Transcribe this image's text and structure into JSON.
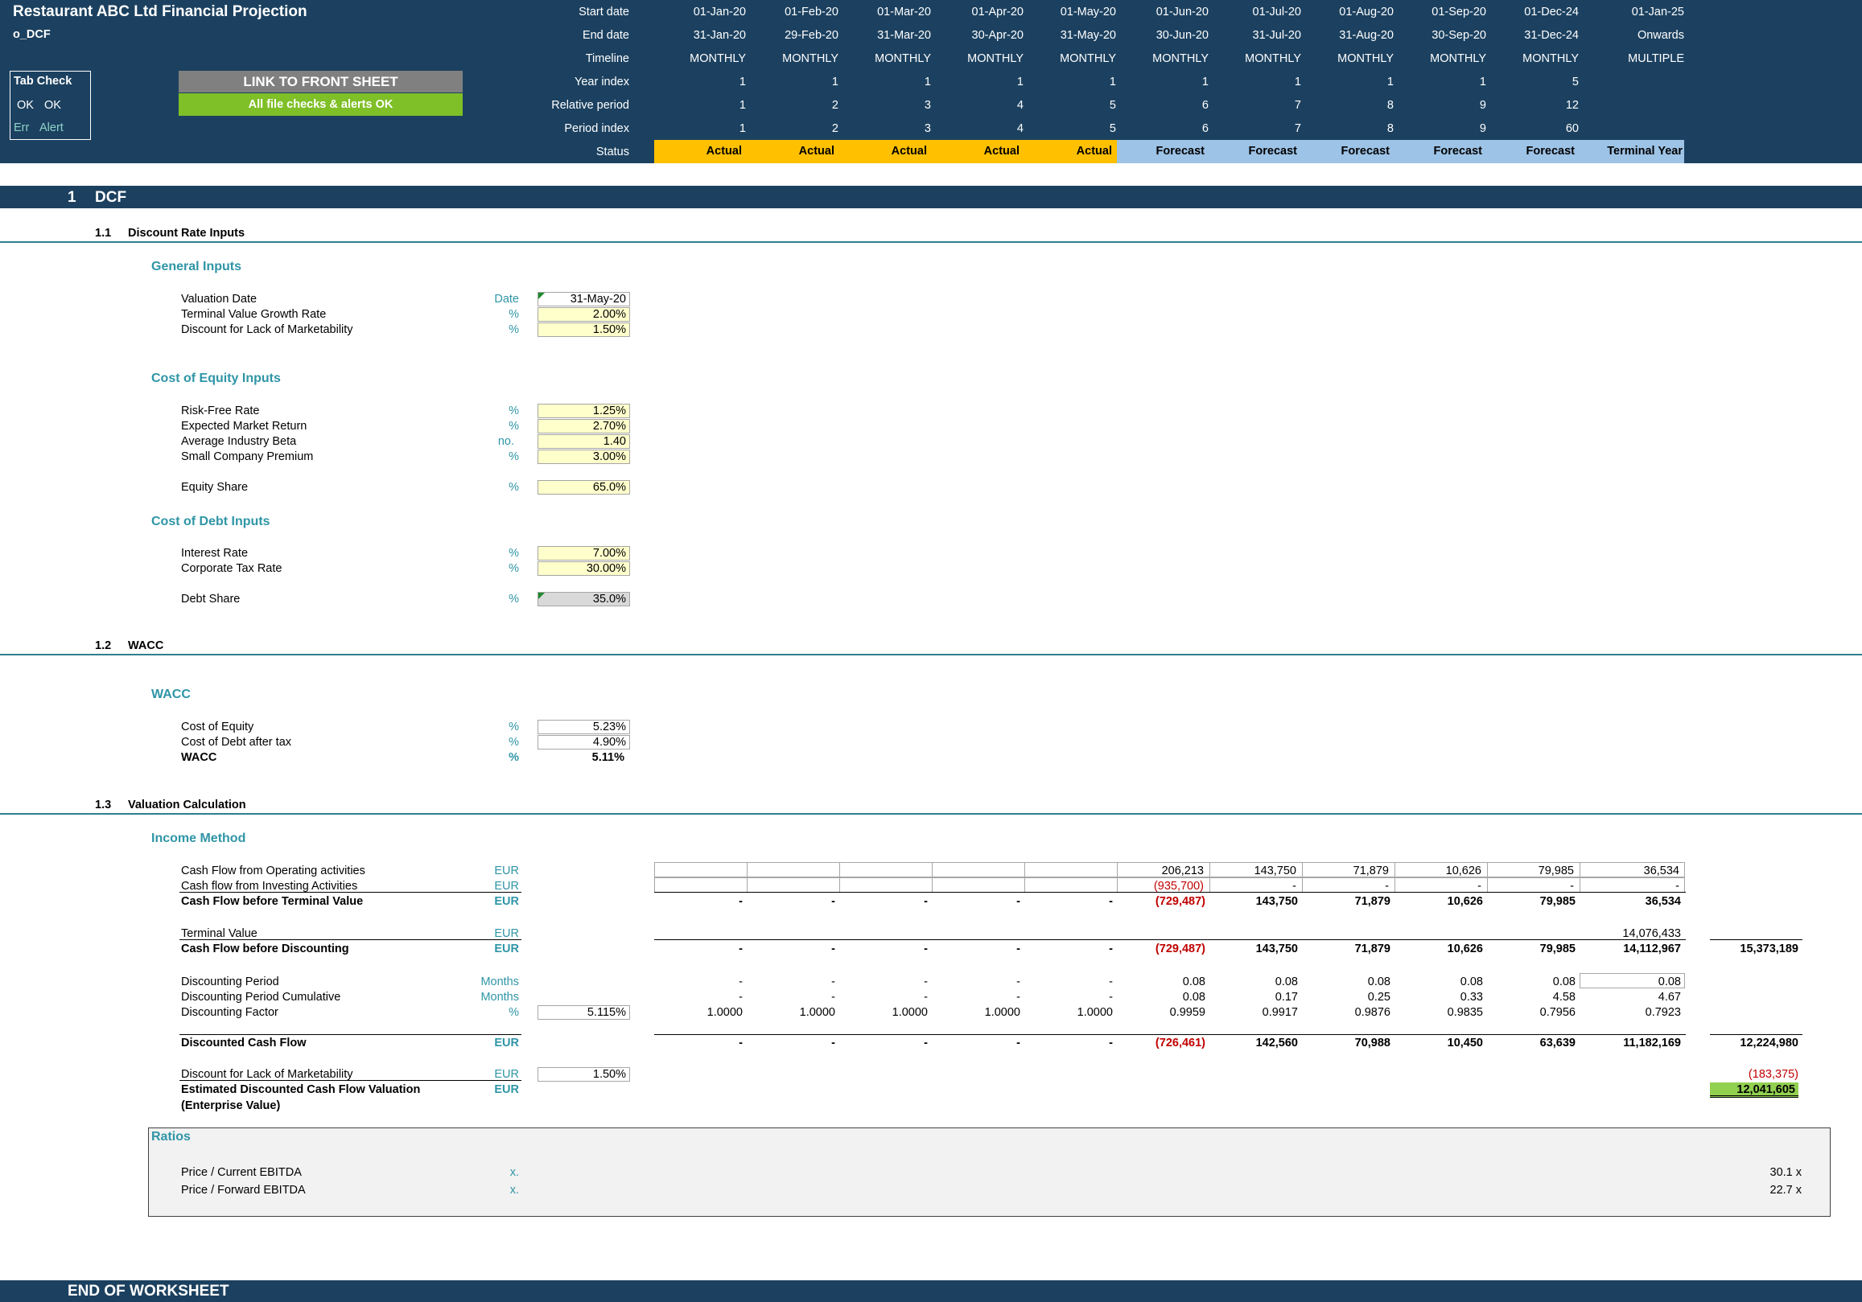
{
  "header": {
    "title": "Restaurant ABC Ltd Financial Projection",
    "sheet": "o_DCF",
    "tab_check_label": "Tab Check",
    "ok1": "OK",
    "ok2": "OK",
    "err": "Err",
    "alert": "Alert",
    "link_button": "LINK TO FRONT SHEET",
    "checks_status": "All file checks & alerts OK",
    "row_labels": [
      "Start date",
      "End date",
      "Timeline",
      "Year index",
      "Relative period",
      "Period index",
      "Status"
    ],
    "start_dates": [
      "01-Jan-20",
      "01-Feb-20",
      "01-Mar-20",
      "01-Apr-20",
      "01-May-20",
      "01-Jun-20",
      "01-Jul-20",
      "01-Aug-20",
      "01-Sep-20",
      "01-Dec-24",
      "01-Jan-25"
    ],
    "end_dates": [
      "31-Jan-20",
      "29-Feb-20",
      "31-Mar-20",
      "30-Apr-20",
      "31-May-20",
      "30-Jun-20",
      "31-Jul-20",
      "31-Aug-20",
      "30-Sep-20",
      "31-Dec-24",
      "Onwards"
    ],
    "timeline": [
      "MONTHLY",
      "MONTHLY",
      "MONTHLY",
      "MONTHLY",
      "MONTHLY",
      "MONTHLY",
      "MONTHLY",
      "MONTHLY",
      "MONTHLY",
      "MONTHLY",
      "MULTIPLE"
    ],
    "year_index": [
      "1",
      "1",
      "1",
      "1",
      "1",
      "1",
      "1",
      "1",
      "1",
      "5",
      ""
    ],
    "relative_period": [
      "1",
      "2",
      "3",
      "4",
      "5",
      "6",
      "7",
      "8",
      "9",
      "12",
      ""
    ],
    "period_index": [
      "1",
      "2",
      "3",
      "4",
      "5",
      "6",
      "7",
      "8",
      "9",
      "60",
      ""
    ],
    "status": [
      "Actual",
      "Actual",
      "Actual",
      "Actual",
      "Actual",
      "Forecast",
      "Forecast",
      "Forecast",
      "Forecast",
      "Forecast",
      "Terminal Year"
    ]
  },
  "section": {
    "number": "1",
    "title": "DCF"
  },
  "sub1": {
    "number": "1.1",
    "title": "Discount Rate Inputs"
  },
  "general": {
    "heading": "General Inputs",
    "rows": [
      {
        "label": "Valuation Date",
        "unit": "Date",
        "value": "31-May-20"
      },
      {
        "label": "Terminal Value Growth Rate",
        "unit": "%",
        "value": "2.00%"
      },
      {
        "label": "Discount for Lack of Marketability",
        "unit": "%",
        "value": "1.50%"
      }
    ]
  },
  "equity": {
    "heading": "Cost of Equity Inputs",
    "rows": [
      {
        "label": "Risk-Free Rate",
        "unit": "%",
        "value": "1.25%"
      },
      {
        "label": "Expected Market Return",
        "unit": "%",
        "value": "2.70%"
      },
      {
        "label": "Average Industry Beta",
        "unit": "no.",
        "value": "1.40"
      },
      {
        "label": "Small Company Premium",
        "unit": "%",
        "value": "3.00%"
      }
    ],
    "share": {
      "label": "Equity Share",
      "unit": "%",
      "value": "65.0%"
    }
  },
  "debt": {
    "heading": "Cost of Debt Inputs",
    "rows": [
      {
        "label": "Interest Rate",
        "unit": "%",
        "value": "7.00%"
      },
      {
        "label": "Corporate Tax Rate",
        "unit": "%",
        "value": "30.00%"
      }
    ],
    "share": {
      "label": "Debt Share",
      "unit": "%",
      "value": "35.0%"
    }
  },
  "sub2": {
    "number": "1.2",
    "title": "WACC"
  },
  "wacc": {
    "heading": "WACC",
    "rows": [
      {
        "label": "Cost of Equity",
        "unit": "%",
        "value": "5.23%"
      },
      {
        "label": "Cost of Debt after tax",
        "unit": "%",
        "value": "4.90%"
      },
      {
        "label": "WACC",
        "unit": "%",
        "value": "5.11%"
      }
    ]
  },
  "sub3": {
    "number": "1.3",
    "title": "Valuation Calculation"
  },
  "income": {
    "heading": "Income Method",
    "cfo": {
      "label": "Cash Flow from Operating activities",
      "unit": "EUR",
      "vals": [
        "",
        "",
        "",
        "",
        "",
        "206,213",
        "143,750",
        "71,879",
        "10,626",
        "79,985",
        "36,534"
      ]
    },
    "cfi": {
      "label": "Cash flow from Investing Activities",
      "unit": "EUR",
      "vals": [
        "",
        "",
        "",
        "",
        "",
        "(935,700)",
        "-",
        "-",
        "-",
        "-",
        "-"
      ]
    },
    "cfbtv": {
      "label": "Cash Flow before Terminal Value",
      "unit": "EUR",
      "vals": [
        "-",
        "-",
        "-",
        "-",
        "-",
        "(729,487)",
        "143,750",
        "71,879",
        "10,626",
        "79,985",
        "36,534"
      ]
    },
    "tv": {
      "label": "Terminal Value",
      "unit": "EUR",
      "vals": [
        "",
        "",
        "",
        "",
        "",
        "",
        "",
        "",
        "",
        "",
        "14,076,433"
      ]
    },
    "cfbd": {
      "label": "Cash Flow before Discounting",
      "unit": "EUR",
      "vals": [
        "-",
        "-",
        "-",
        "-",
        "-",
        "(729,487)",
        "143,750",
        "71,879",
        "10,626",
        "79,985",
        "14,112,967"
      ],
      "total": "15,373,189"
    },
    "dp": {
      "label": "Discounting Period",
      "unit": "Months",
      "vals": [
        "-",
        "-",
        "-",
        "-",
        "-",
        "0.08",
        "0.08",
        "0.08",
        "0.08",
        "0.08",
        "0.08"
      ]
    },
    "dpc": {
      "label": "Discounting Period Cumulative",
      "unit": "Months",
      "vals": [
        "-",
        "-",
        "-",
        "-",
        "-",
        "0.08",
        "0.17",
        "0.25",
        "0.33",
        "4.58",
        "4.67"
      ]
    },
    "df": {
      "label": "Discounting Factor",
      "unit": "%",
      "rate": "5.115%",
      "vals": [
        "1.0000",
        "1.0000",
        "1.0000",
        "1.0000",
        "1.0000",
        "0.9959",
        "0.9917",
        "0.9876",
        "0.9835",
        "0.7956",
        "0.7923"
      ]
    },
    "dcf": {
      "label": "Discounted Cash Flow",
      "unit": "EUR",
      "vals": [
        "-",
        "-",
        "-",
        "-",
        "-",
        "(726,461)",
        "142,560",
        "70,988",
        "10,450",
        "63,639",
        "11,182,169"
      ],
      "total": "12,224,980"
    },
    "dlm": {
      "label": "Discount for Lack of Marketability",
      "unit": "EUR",
      "rate": "1.50%",
      "total": "(183,375)"
    },
    "edcf": {
      "label": "Estimated Discounted Cash Flow Valuation",
      "label2": "(Enterprise Value)",
      "unit": "EUR",
      "total": "12,041,605"
    }
  },
  "ratios": {
    "heading": "Ratios",
    "rows": [
      {
        "label": "Price / Current EBITDA",
        "unit": "x.",
        "value": "30.1 x"
      },
      {
        "label": "Price / Forward EBITDA",
        "unit": "x.",
        "value": "22.7 x"
      }
    ]
  },
  "footer": {
    "text": "END OF WORKSHEET"
  }
}
